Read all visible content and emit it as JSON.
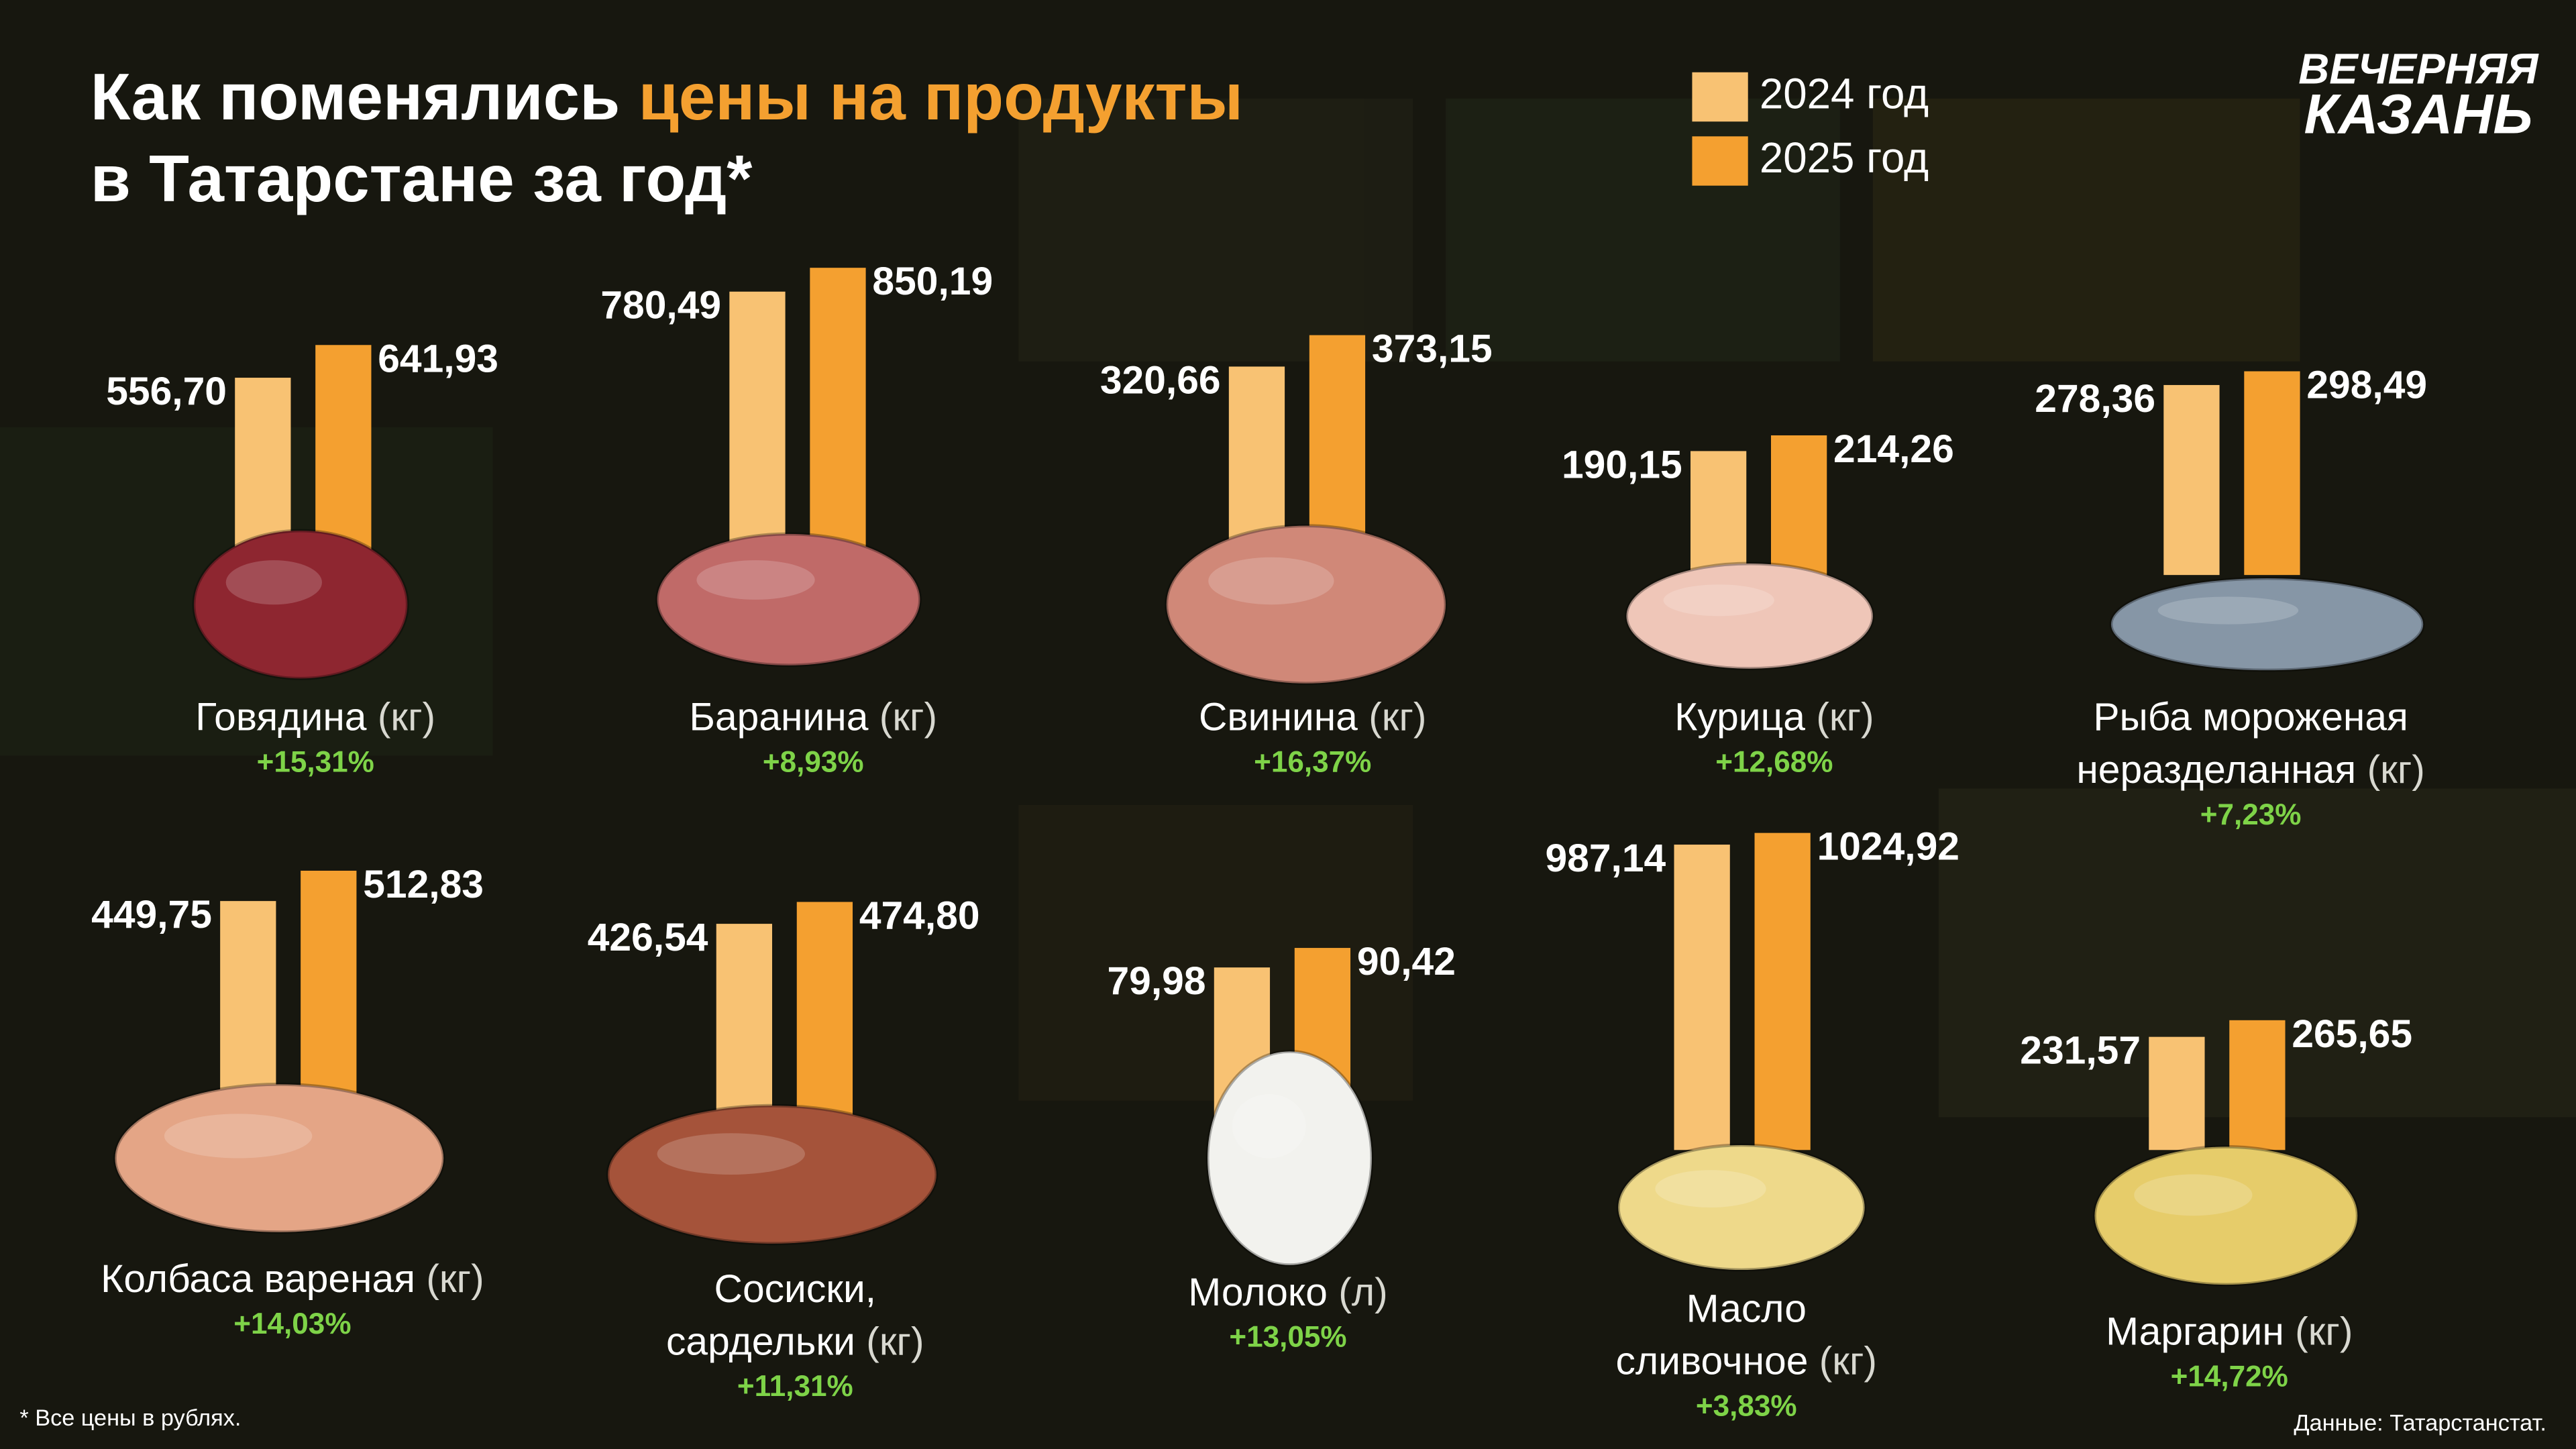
{
  "header": {
    "title_start": "Как поменялись ",
    "title_highlight": "цены на продукты",
    "title_line2": "в Татарстане за год*",
    "logo": [
      "ВЕЧЕРНЯЯ",
      "КАЗАНЬ"
    ]
  },
  "legend": [
    {
      "name": "2024 год",
      "color": "#f8c273"
    },
    {
      "name": "2025 год",
      "color": "#f4a030"
    }
  ],
  "chart_data": [
    {
      "type": "bar",
      "name": [
        "Говядина"
      ],
      "unit": "(кг)",
      "values": [
        556.7,
        641.93
      ],
      "value_labels": [
        "556,70",
        "641,93"
      ],
      "change": "+15,31%"
    },
    {
      "type": "bar",
      "name": [
        "Баранина"
      ],
      "unit": "(кг)",
      "values": [
        780.49,
        850.19
      ],
      "value_labels": [
        "780,49",
        "850,19"
      ],
      "change": "+8,93%"
    },
    {
      "type": "bar",
      "name": [
        "Свинина"
      ],
      "unit": "(кг)",
      "values": [
        320.66,
        373.15
      ],
      "value_labels": [
        "320,66",
        "373,15"
      ],
      "change": "+16,37%"
    },
    {
      "type": "bar",
      "name": [
        "Курица"
      ],
      "unit": "(кг)",
      "values": [
        190.15,
        214.26
      ],
      "value_labels": [
        "190,15",
        "214,26"
      ],
      "change": "+12,68%"
    },
    {
      "type": "bar",
      "name": [
        "Рыба мороженая",
        "неразделанная"
      ],
      "unit": "(кг)",
      "values": [
        278.36,
        298.49
      ],
      "value_labels": [
        "278,36",
        "298,49"
      ],
      "change": "+7,23%"
    },
    {
      "type": "bar",
      "name": [
        "Колбаса вареная"
      ],
      "unit": "(кг)",
      "values": [
        449.75,
        512.83
      ],
      "value_labels": [
        "449,75",
        "512,83"
      ],
      "change": "+14,03%"
    },
    {
      "type": "bar",
      "name": [
        "Сосиски,",
        "сардельки"
      ],
      "unit": "(кг)",
      "values": [
        426.54,
        474.8
      ],
      "value_labels": [
        "426,54",
        "474,80"
      ],
      "change": "+11,31%"
    },
    {
      "type": "bar",
      "name": [
        "Молоко"
      ],
      "unit": "(л)",
      "values": [
        79.98,
        90.42
      ],
      "value_labels": [
        "79,98",
        "90,42"
      ],
      "change": "+13,05%"
    },
    {
      "type": "bar",
      "name": [
        "Масло",
        "сливочное"
      ],
      "unit": "(кг)",
      "values": [
        987.14,
        1024.92
      ],
      "value_labels": [
        "987,14",
        "1024,92"
      ],
      "change": "+3,83%"
    },
    {
      "type": "bar",
      "name": [
        "Маргарин"
      ],
      "unit": "(кг)",
      "values": [
        231.57,
        265.65
      ],
      "value_labels": [
        "231,57",
        "265,65"
      ],
      "change": "+14,72%"
    }
  ],
  "footer": {
    "note": "* Все цены в рублях.",
    "source": "Данные: Татарстанстат."
  }
}
